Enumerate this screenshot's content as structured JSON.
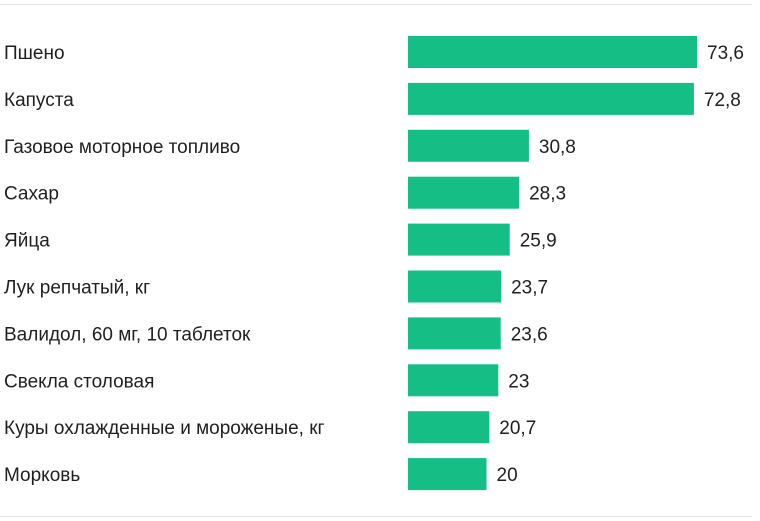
{
  "colors": {
    "bar": "#14be85",
    "text": "#1f1f1f",
    "rule": "#e3e3e3"
  },
  "chart_data": {
    "type": "bar",
    "orientation": "horizontal",
    "title": "",
    "xlabel": "",
    "ylabel": "",
    "grid": false,
    "legend": "none",
    "xlim": [
      0,
      73.6
    ],
    "categories": [
      "Пшено",
      "Капуста",
      "Газовое моторное топливо",
      "Сахар",
      "Яйца",
      "Лук репчатый, кг",
      "Валидол, 60 мг, 10 таблеток",
      "Свекла столовая",
      "Куры охлажденные и мороженые, кг",
      "Морковь"
    ],
    "values": [
      73.6,
      72.8,
      30.8,
      28.3,
      25.9,
      23.7,
      23.6,
      23,
      20.7,
      20
    ],
    "value_labels": [
      "73,6",
      "72,8",
      "30,8",
      "28,3",
      "25,9",
      "23,7",
      "23,6",
      "23",
      "20,7",
      "20"
    ]
  }
}
